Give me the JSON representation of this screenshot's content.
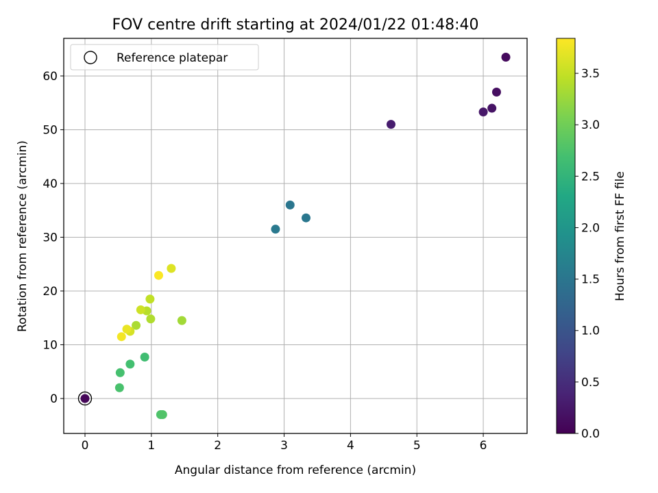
{
  "chart_data": {
    "type": "scatter",
    "title": "FOV centre drift starting at 2024/01/22 01:48:40",
    "xlabel": "Angular distance from reference (arcmin)",
    "ylabel": "Rotation from reference (arcmin)",
    "xlim": [
      -0.32,
      6.66
    ],
    "ylim": [
      -6.5,
      67.0
    ],
    "xticks": [
      0,
      1,
      2,
      3,
      4,
      5,
      6
    ],
    "yticks": [
      0,
      10,
      20,
      30,
      40,
      50,
      60
    ],
    "grid": true,
    "legend": {
      "position": "top-left",
      "entries": [
        "Reference platepar"
      ]
    },
    "colorbar": {
      "label": "Hours from first FF file",
      "colormap": "viridis",
      "range": [
        0.0,
        3.84
      ],
      "ticks": [
        "0.0",
        "0.5",
        "1.0",
        "1.5",
        "2.0",
        "2.5",
        "3.0",
        "3.5"
      ]
    },
    "reference_point": {
      "x": 0,
      "y": 0
    },
    "points": [
      {
        "x": 0.0,
        "y": 0.0,
        "hours": 0.05
      },
      {
        "x": 6.34,
        "y": 63.5,
        "hours": 0.1
      },
      {
        "x": 6.2,
        "y": 57.0,
        "hours": 0.15
      },
      {
        "x": 6.13,
        "y": 54.0,
        "hours": 0.2
      },
      {
        "x": 6.0,
        "y": 53.3,
        "hours": 0.25
      },
      {
        "x": 4.61,
        "y": 51.0,
        "hours": 0.3
      },
      {
        "x": 3.09,
        "y": 36.0,
        "hours": 1.5
      },
      {
        "x": 3.33,
        "y": 33.6,
        "hours": 1.52
      },
      {
        "x": 2.87,
        "y": 31.5,
        "hours": 1.55
      },
      {
        "x": 0.9,
        "y": 7.7,
        "hours": 2.65
      },
      {
        "x": 0.68,
        "y": 6.4,
        "hours": 2.68
      },
      {
        "x": 0.53,
        "y": 4.8,
        "hours": 2.7
      },
      {
        "x": 0.52,
        "y": 2.0,
        "hours": 2.72
      },
      {
        "x": 1.14,
        "y": -3.0,
        "hours": 2.75
      },
      {
        "x": 1.17,
        "y": -3.0,
        "hours": 2.78
      },
      {
        "x": 1.46,
        "y": 14.5,
        "hours": 3.3
      },
      {
        "x": 0.77,
        "y": 13.6,
        "hours": 3.35
      },
      {
        "x": 0.99,
        "y": 14.8,
        "hours": 3.38
      },
      {
        "x": 0.93,
        "y": 16.3,
        "hours": 3.42
      },
      {
        "x": 0.98,
        "y": 18.5,
        "hours": 3.48
      },
      {
        "x": 0.84,
        "y": 16.5,
        "hours": 3.55
      },
      {
        "x": 0.68,
        "y": 12.5,
        "hours": 3.6
      },
      {
        "x": 1.3,
        "y": 24.2,
        "hours": 3.65
      },
      {
        "x": 0.63,
        "y": 12.9,
        "hours": 3.72
      },
      {
        "x": 0.55,
        "y": 11.5,
        "hours": 3.78
      },
      {
        "x": 1.11,
        "y": 22.9,
        "hours": 3.82
      }
    ]
  }
}
